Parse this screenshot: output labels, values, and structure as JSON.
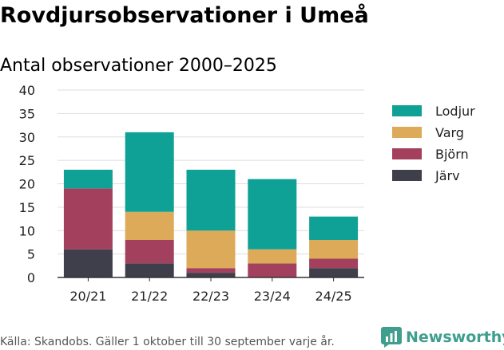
{
  "header": {
    "title": "Rovdjursobservationer i Umeå",
    "subtitle": "Antal observationer 2000–2025"
  },
  "footer": {
    "source": "Källa: Skandobs. Gäller 1 oktober till 30 september varje år.",
    "brand": "Newsworthy"
  },
  "colors": {
    "brand": "#3f9e8e",
    "grid": "#dddddd",
    "axis": "#333333"
  },
  "chart_data": {
    "type": "bar",
    "stacked": true,
    "title": "Rovdjursobservationer i Umeå",
    "subtitle": "Antal observationer 2000–2025",
    "xlabel": "",
    "ylabel": "",
    "categories": [
      "20/21",
      "21/22",
      "22/23",
      "23/24",
      "24/25"
    ],
    "ylim": [
      0,
      40
    ],
    "yticks": [
      0,
      5,
      10,
      15,
      20,
      25,
      30,
      35,
      40
    ],
    "grid": true,
    "legend_position": "right",
    "series": [
      {
        "name": "Järv",
        "color": "#3f3f4c",
        "values": [
          6,
          3,
          1,
          0,
          2
        ]
      },
      {
        "name": "Björn",
        "color": "#a3405e",
        "values": [
          13,
          5,
          1,
          3,
          2
        ]
      },
      {
        "name": "Varg",
        "color": "#dcaa58",
        "values": [
          0,
          6,
          8,
          3,
          4
        ]
      },
      {
        "name": "Lodjur",
        "color": "#10a196",
        "values": [
          4,
          17,
          13,
          15,
          5
        ]
      }
    ],
    "legend_order": [
      "Lodjur",
      "Varg",
      "Björn",
      "Järv"
    ]
  }
}
